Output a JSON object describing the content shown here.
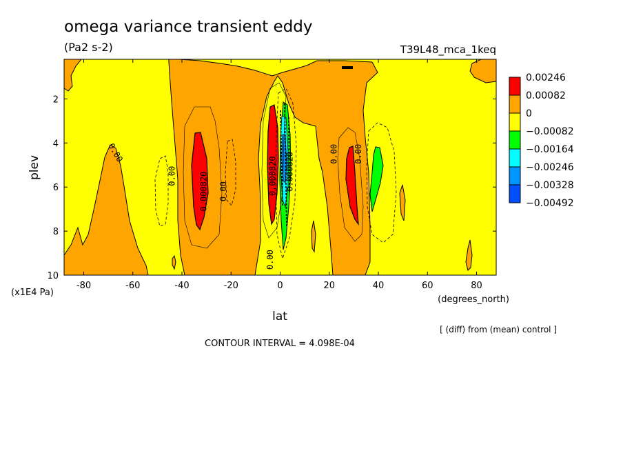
{
  "chart_data": {
    "type": "heatmap",
    "title": "omega variance transient eddy",
    "units": "(Pa2 s-2)",
    "run_label": "T39L48_mca_1keq",
    "xlabel": "lat",
    "x_units": "(degrees_north)",
    "ylabel": "plev",
    "y_units": "(x1E4 Pa)",
    "xlim": [
      -88,
      88
    ],
    "ylim": [
      10,
      0.2
    ],
    "x_ticks": [
      -80,
      -60,
      -40,
      -20,
      0,
      20,
      40,
      60,
      80
    ],
    "x_tick_labels": [
      "-80",
      "-60",
      "-40",
      "-20",
      "0",
      "20",
      "40",
      "60",
      "80"
    ],
    "y_ticks": [
      2,
      4,
      6,
      8,
      10
    ],
    "y_tick_labels": [
      "2",
      "4",
      "6",
      "8",
      "10"
    ],
    "contour_interval": "CONTOUR INTERVAL = 4.098E-04",
    "note": "[ (diff) from (mean) control ]",
    "legend": {
      "placement": "right",
      "levels": [
        "0.00246",
        "0.00082",
        "0",
        "−0.00082",
        "−0.00164",
        "−0.00246",
        "−0.00328",
        "−0.00492"
      ],
      "colors": [
        "#ff0000",
        "#ffa500",
        "#ffff00",
        "#00ff00",
        "#00ffff",
        "#0095ff",
        "#0050ff"
      ]
    },
    "contour_labels": [
      {
        "text": "0.00",
        "lat": -68,
        "plev": 4.5,
        "angle": 60
      },
      {
        "text": "0.00",
        "lat": -43,
        "plev": 5.5,
        "angle": -90
      },
      {
        "text": "0.000820",
        "lat": -30,
        "plev": 6.2,
        "angle": -90
      },
      {
        "text": "0.00",
        "lat": -22,
        "plev": 6.2,
        "angle": -90
      },
      {
        "text": "0.00",
        "lat": -3,
        "plev": 9.3,
        "angle": -90
      },
      {
        "text": "0.000820",
        "lat": -2,
        "plev": 5.5,
        "angle": -90
      },
      {
        "text": "0.000820",
        "lat": 5,
        "plev": 5.3,
        "angle": -90
      },
      {
        "text": "0.00",
        "lat": 23,
        "plev": 4.5,
        "angle": -90
      },
      {
        "text": "0.00",
        "lat": 33,
        "plev": 4.5,
        "angle": -90
      }
    ]
  }
}
